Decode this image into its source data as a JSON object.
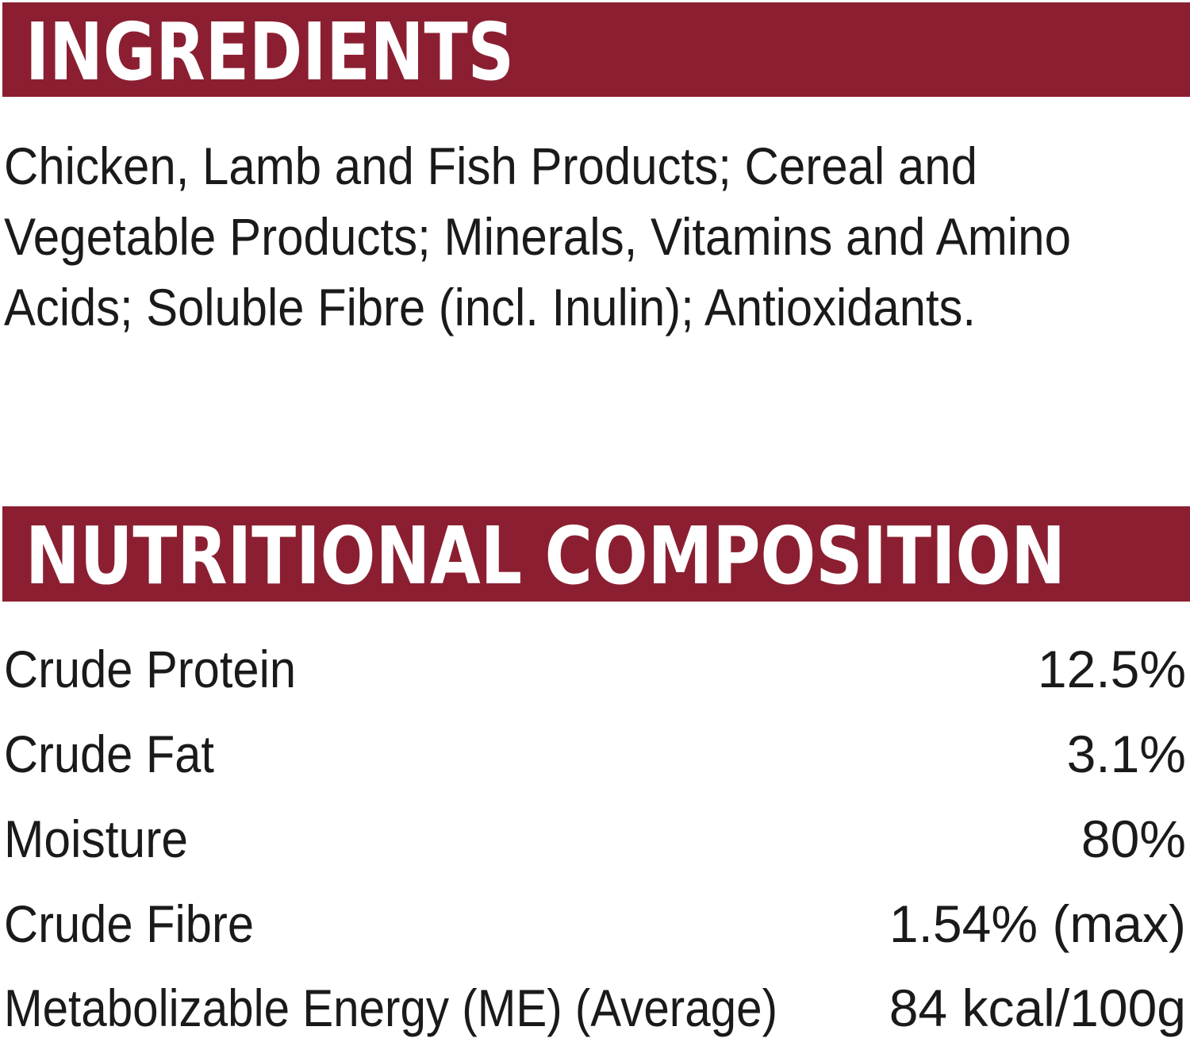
{
  "ingredients": {
    "title": "INGREDIENTS",
    "lines": [
      "Chicken, Lamb and Fish Products; Cereal and",
      "Vegetable Products; Minerals, Vitamins and Amino",
      "Acids; Soluble Fibre (incl. Inulin); Antioxidants."
    ]
  },
  "nutrition": {
    "title": "NUTRITIONAL COMPOSITION",
    "rows": [
      [
        "Crude Protein",
        "12.5%"
      ],
      [
        "Crude Fat",
        "3.1%"
      ],
      [
        "Moisture",
        "80%"
      ],
      [
        "Crude Fibre",
        "1.54% (max)"
      ],
      [
        "Metabolizable Energy (ME) (Average)",
        "84 kcal/100g"
      ]
    ]
  }
}
